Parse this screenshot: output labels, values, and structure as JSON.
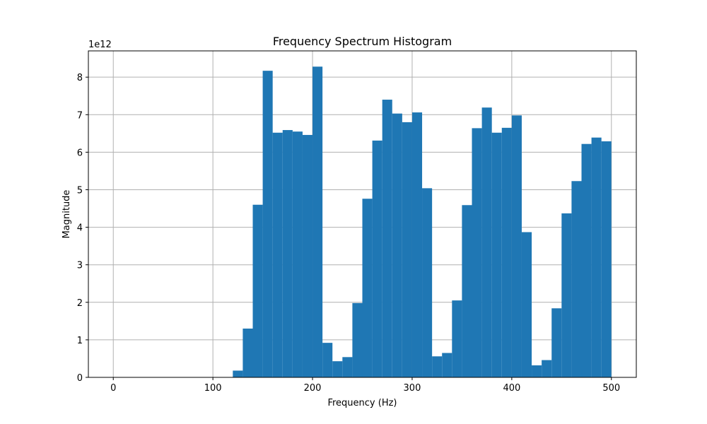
{
  "chart_data": {
    "type": "bar",
    "title": "Frequency Spectrum Histogram",
    "xlabel": "Frequency (Hz)",
    "ylabel": "Magnitude",
    "y_offset_label": "1e12",
    "y_scale": 1000000000000.0,
    "xlim": [
      -25,
      525
    ],
    "ylim": [
      0,
      8.7
    ],
    "grid": true,
    "x_ticks": [
      0,
      100,
      200,
      300,
      400,
      500
    ],
    "y_ticks": [
      0,
      1,
      2,
      3,
      4,
      5,
      6,
      7,
      8
    ],
    "bar_color": "#1f77b4",
    "bin_width": 10,
    "bin_edges_start": [
      0,
      10,
      20,
      30,
      40,
      50,
      60,
      70,
      80,
      90,
      100,
      110,
      120,
      130,
      140,
      150,
      160,
      170,
      180,
      190,
      200,
      210,
      220,
      230,
      240,
      250,
      260,
      270,
      280,
      290,
      300,
      310,
      320,
      330,
      340,
      350,
      360,
      370,
      380,
      390,
      400,
      410,
      420,
      430,
      440,
      450,
      460,
      470,
      480,
      490
    ],
    "values": [
      0,
      0,
      0,
      0,
      0,
      0,
      0,
      0,
      0,
      0,
      0,
      0,
      0.18,
      1.3,
      4.6,
      8.17,
      6.52,
      6.59,
      6.55,
      6.46,
      8.28,
      0.92,
      0.43,
      0.54,
      1.98,
      4.76,
      6.31,
      7.4,
      7.03,
      6.8,
      7.06,
      5.04,
      0.56,
      0.65,
      2.05,
      4.59,
      6.64,
      7.19,
      6.52,
      6.65,
      6.98,
      3.87,
      0.32,
      0.46,
      1.84,
      4.37,
      5.23,
      6.22,
      6.39,
      6.29
    ]
  }
}
